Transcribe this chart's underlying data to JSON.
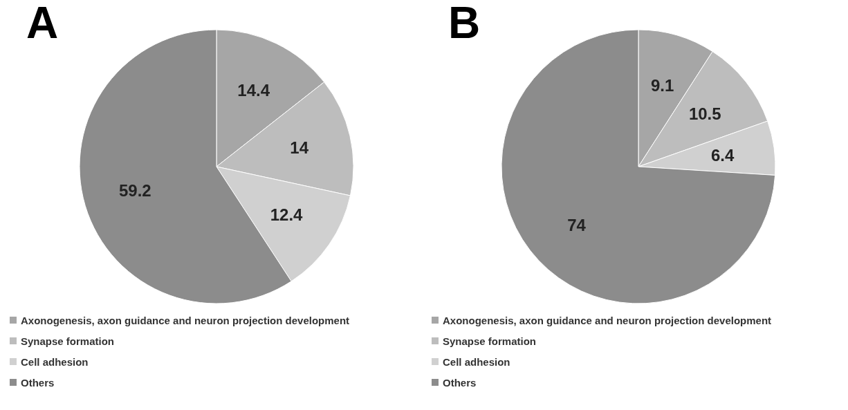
{
  "chart_data": [
    {
      "type": "pie",
      "title": "A",
      "categories": [
        "Axonogenesis, axon guidance and neuron projection development",
        "Synapse formation",
        "Cell adhesion",
        "Others"
      ],
      "values": [
        14.4,
        14,
        12.4,
        59.2
      ],
      "colors": [
        "#a6a6a6",
        "#bdbdbd",
        "#d0d0d0",
        "#8c8c8c"
      ],
      "data_labels": true,
      "legend": "bottom left"
    },
    {
      "type": "pie",
      "title": "B",
      "categories": [
        "Axonogenesis, axon guidance and neuron projection development",
        "Synapse formation",
        "Cell adhesion",
        "Others"
      ],
      "values": [
        9.1,
        10.5,
        6.4,
        74
      ],
      "colors": [
        "#a6a6a6",
        "#bdbdbd",
        "#d0d0d0",
        "#8c8c8c"
      ],
      "data_labels": true,
      "legend": "bottom left"
    }
  ]
}
